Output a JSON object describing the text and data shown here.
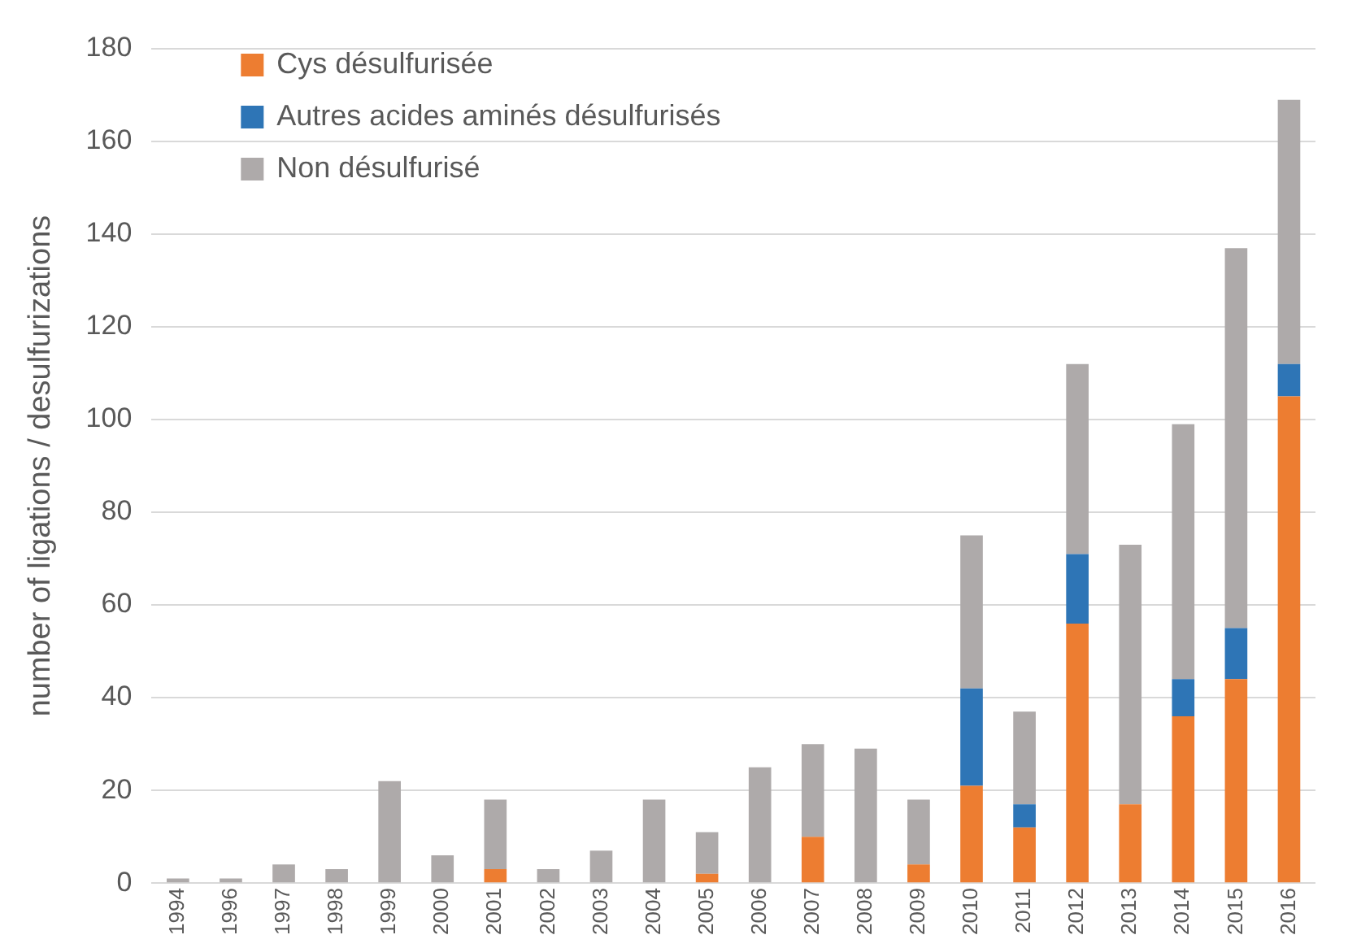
{
  "chart_data": {
    "type": "bar",
    "stacked": true,
    "ylabel": "number of ligations / desulfurizations",
    "categories": [
      "1994",
      "1996",
      "1997",
      "1998",
      "1999",
      "2000",
      "2001",
      "2002",
      "2003",
      "2004",
      "2005",
      "2006",
      "2007",
      "2008",
      "2009",
      "2010",
      "2011",
      "2012",
      "2013",
      "2014",
      "2015",
      "2016"
    ],
    "series": [
      {
        "name": "Cys désulfurisée",
        "color": "#ed7d31",
        "values": [
          0,
          0,
          0,
          0,
          0,
          0,
          3,
          0,
          0,
          0,
          2,
          0,
          10,
          0,
          4,
          21,
          12,
          56,
          17,
          36,
          44,
          105
        ]
      },
      {
        "name": "Autres acides aminés désulfurisés",
        "color": "#2e75b6",
        "values": [
          0,
          0,
          0,
          0,
          0,
          0,
          0,
          0,
          0,
          0,
          0,
          0,
          0,
          0,
          0,
          21,
          5,
          15,
          0,
          8,
          11,
          7
        ]
      },
      {
        "name": "Non désulfurisé",
        "color": "#aeaaaa",
        "values": [
          1,
          1,
          4,
          3,
          22,
          6,
          15,
          3,
          7,
          18,
          9,
          25,
          20,
          29,
          14,
          33,
          20,
          41,
          56,
          55,
          82,
          57
        ]
      }
    ],
    "ylim": [
      0,
      180
    ],
    "yticks": [
      0,
      20,
      40,
      60,
      80,
      100,
      120,
      140,
      160,
      180
    ],
    "grid": "y",
    "legend": "top left"
  }
}
